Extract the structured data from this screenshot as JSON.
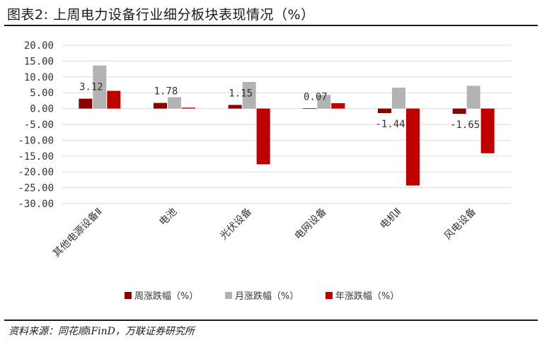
{
  "title": "图表2: 上周电力设备行业细分板块表现情况（%）",
  "source": "资料来源：同花顺iFinD，万联证券研究所",
  "colors": {
    "weekly": "#8b0000",
    "monthly": "#b3b3b3",
    "yearly": "#c00000",
    "grid": "#d9d9d9"
  },
  "chart_data": {
    "type": "bar",
    "categories": [
      "其他电源设备Ⅱ",
      "电池",
      "光伏设备",
      "电网设备",
      "电机Ⅱ",
      "风电设备"
    ],
    "series": [
      {
        "name": "周涨跌幅（%）",
        "values": [
          3.12,
          1.78,
          1.15,
          0.07,
          -1.44,
          -1.65
        ]
      },
      {
        "name": "月涨跌幅（%）",
        "values": [
          13.6,
          3.6,
          8.4,
          4.3,
          6.6,
          7.2
        ]
      },
      {
        "name": "年涨跌幅（%）",
        "values": [
          5.6,
          0.3,
          -17.6,
          1.7,
          -24.3,
          -14.1
        ]
      }
    ],
    "data_labels": [
      "3.12",
      "1.78",
      "1.15",
      "0.07",
      "-1.44",
      "-1.65"
    ],
    "ylim": [
      -30,
      20
    ],
    "yticks": [
      "20.00",
      "15.00",
      "10.00",
      "5.00",
      "0.00",
      "-5.00",
      "-10.00",
      "-15.00",
      "-20.00",
      "-25.00",
      "-30.00"
    ],
    "grid": true,
    "legend_position": "bottom"
  }
}
